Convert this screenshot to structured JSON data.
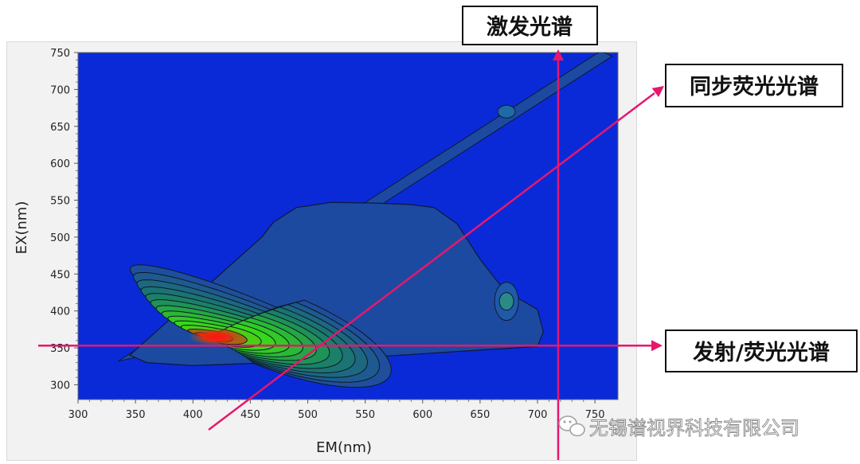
{
  "chart_data": {
    "type": "heatmap",
    "xlabel": "EM(nm)",
    "ylabel": "EX(nm)",
    "xlim": [
      300,
      770
    ],
    "ylim": [
      280,
      750
    ],
    "xticks": [
      300,
      350,
      400,
      450,
      500,
      550,
      600,
      650,
      700,
      750
    ],
    "yticks": [
      300,
      350,
      400,
      450,
      500,
      550,
      600,
      650,
      700,
      750
    ],
    "colors": {
      "background": "#0a2ad8",
      "low": "#1f4a9c",
      "mid": "#1f8f50",
      "high": "#35e01a",
      "peak": "#ff1010"
    },
    "peak": {
      "x": 420,
      "y": 365
    },
    "secondary_peak": {
      "x": 673,
      "y": 413
    },
    "lines": {
      "excitation": {
        "label": "激发光谱",
        "x": 718
      },
      "emission": {
        "label": "发射/荧光光谱",
        "y": 353
      },
      "synchronous": {
        "label": "同步荧光光谱",
        "from": [
          420,
          300
        ],
        "to": [
          750,
          710
        ]
      }
    }
  },
  "overlay": {
    "accent": "#e6176e"
  },
  "watermark": {
    "text": "无锡谱视界科技有限公司"
  }
}
